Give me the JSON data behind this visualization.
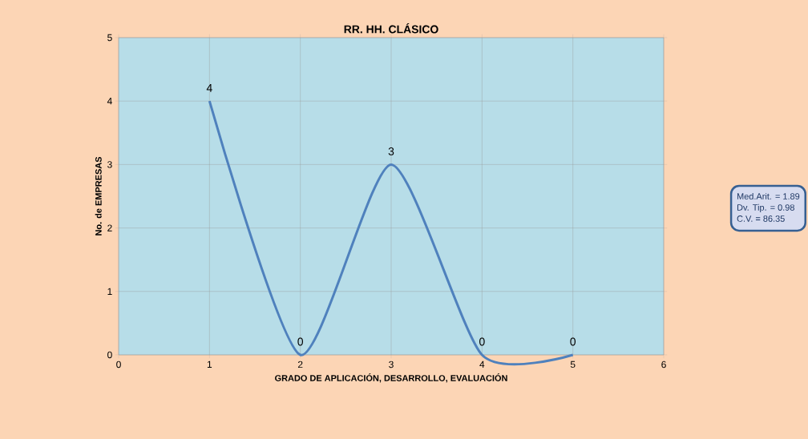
{
  "chart_data": {
    "type": "line",
    "title": "RR. HH. CLÁSICO",
    "xlabel": "GRADO DE APLICACIÓN, DESARROLLO, EVALUACIÓN",
    "ylabel": "No. de EMPRESAS",
    "x": [
      1,
      2,
      3,
      4,
      5
    ],
    "series": [
      {
        "color": "#4f81bd",
        "values": [
          4,
          0,
          3,
          0,
          0
        ]
      }
    ],
    "xlim": [
      0,
      6
    ],
    "xticks": [
      0,
      1,
      2,
      3,
      4,
      5,
      6
    ],
    "ylim": [
      0,
      5
    ],
    "yticks": [
      0,
      1,
      2,
      3,
      4,
      5
    ],
    "grid": true,
    "data_labels": true,
    "marker": "none",
    "line_style": "solid",
    "annotations": [
      "Med.Arit. =    1.89",
      "Dv. Tip.    =    0.98",
      "C.V.         = 86.35"
    ]
  }
}
